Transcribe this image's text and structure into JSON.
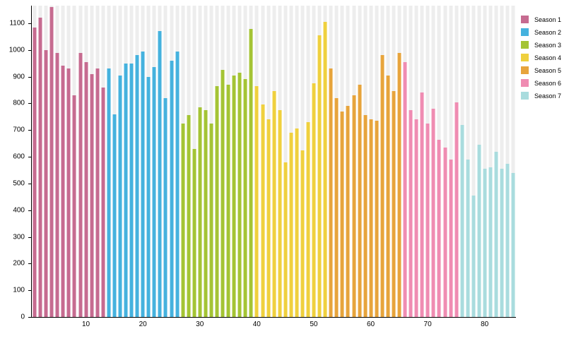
{
  "chart_data": {
    "type": "bar",
    "title": "",
    "xlabel": "",
    "ylabel": "",
    "x_tick_labels": [
      10,
      20,
      30,
      40,
      50,
      60,
      70,
      80
    ],
    "y_ticks": [
      0,
      100,
      200,
      300,
      400,
      500,
      600,
      700,
      800,
      900,
      1000,
      1100
    ],
    "ylim": [
      0,
      1166
    ],
    "grid": "off",
    "background_stripes_color": "#ededed",
    "legend_position": "right",
    "legend_entries": [
      "Season 1",
      "Season 2",
      "Season 3",
      "Season 4",
      "Season 5",
      "Season 6",
      "Season 7"
    ],
    "series": [
      {
        "name": "Season 1",
        "color": "#c66b90",
        "values": [
          1085,
          1120,
          1000,
          1160,
          990,
          940,
          930,
          830,
          990,
          955,
          910,
          930,
          860
        ]
      },
      {
        "name": "Season 2",
        "color": "#45b2de",
        "values": [
          930,
          760,
          905,
          950,
          950,
          980,
          995,
          900,
          935,
          1070,
          820,
          960,
          995
        ]
      },
      {
        "name": "Season 3",
        "color": "#a4c434",
        "values": [
          725,
          755,
          630,
          785,
          775,
          725,
          865,
          925,
          870,
          905,
          915,
          890,
          1080
        ]
      },
      {
        "name": "Season 4",
        "color": "#efd03e",
        "values": [
          865,
          795,
          740,
          845,
          775,
          580,
          690,
          705,
          625,
          730,
          875,
          1055,
          1105
        ]
      },
      {
        "name": "Season 5",
        "color": "#e7a43c",
        "values": [
          930,
          820,
          770,
          790,
          830,
          870,
          755,
          740,
          735,
          980,
          905,
          845,
          990
        ]
      },
      {
        "name": "Season 6",
        "color": "#ef8cb2",
        "values": [
          955,
          775,
          740,
          840,
          725,
          780,
          665,
          635,
          590,
          805
        ]
      },
      {
        "name": "Season 7",
        "color": "#a9dcde",
        "values": [
          720,
          590,
          455,
          645,
          555,
          560,
          620,
          555,
          575,
          540
        ]
      }
    ]
  }
}
